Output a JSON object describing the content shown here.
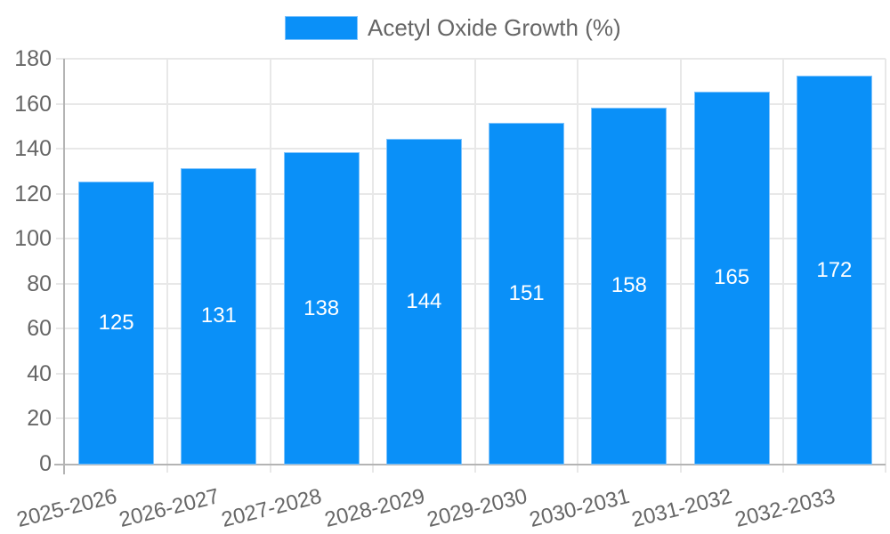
{
  "chart_data": {
    "type": "bar",
    "title": "",
    "legend": {
      "label": "Acetyl Oxide Growth (%)",
      "position": "top"
    },
    "categories": [
      "2025-2026",
      "2026-2027",
      "2027-2028",
      "2028-2029",
      "2029-2030",
      "2030-2031",
      "2031-2032",
      "2032-2033"
    ],
    "series": [
      {
        "name": "Acetyl Oxide Growth (%)",
        "values": [
          125,
          131,
          138,
          144,
          151,
          158,
          165,
          172
        ]
      }
    ],
    "value_labels": [
      "125",
      "131",
      "138",
      "144",
      "151",
      "158",
      "165",
      "172"
    ],
    "xlabel": "",
    "ylabel": "",
    "ylim": [
      0,
      180
    ],
    "yticks": [
      0,
      20,
      40,
      60,
      80,
      100,
      120,
      140,
      160,
      180
    ],
    "grid": true,
    "legend_position": "top-center",
    "colors": {
      "bar": "#0a90f8",
      "bar_edge": "#7fc3fc",
      "grid": "#e8e8e8",
      "axis": "#b4b4b4",
      "tick_text": "#666666",
      "value_text": "#ffffff"
    }
  }
}
